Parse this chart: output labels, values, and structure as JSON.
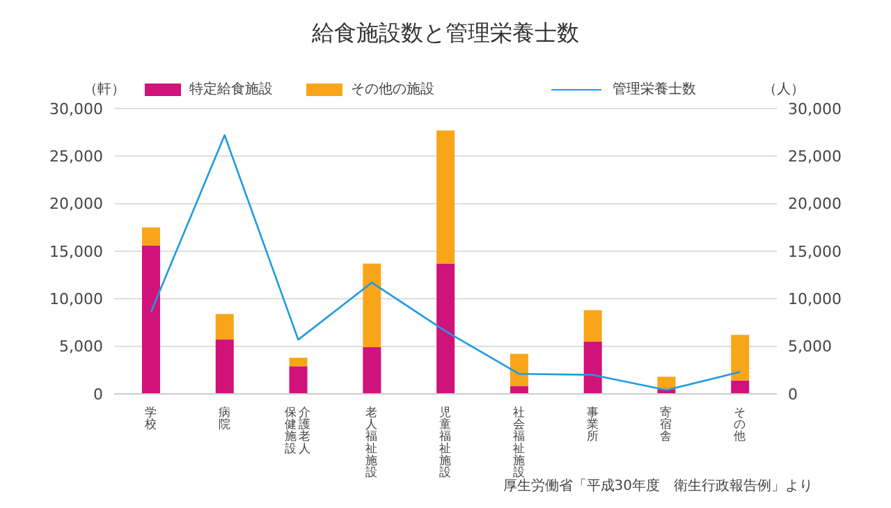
{
  "chart_data": {
    "type": "bar",
    "title": "給食施設数と管理栄養士数",
    "ylabel": "（軒）",
    "y2label": "（人）",
    "categories": [
      "学校",
      "病院",
      "介護老人保健施設",
      "老人福祉施設",
      "児童福祉施設",
      "社会福祉施設",
      "事業所",
      "寄宿舎",
      "その他"
    ],
    "series": [
      {
        "name": "特定給食施設",
        "color": "#d0127a",
        "values": [
          15600,
          5700,
          2900,
          4900,
          13700,
          800,
          5500,
          500,
          1400
        ]
      },
      {
        "name": "その他の施設",
        "color": "#f9a51a",
        "values": [
          1900,
          2700,
          900,
          8800,
          14000,
          3400,
          3300,
          1300,
          4800
        ]
      },
      {
        "name": "管理栄養士数",
        "type": "line",
        "axis": "y2",
        "color": "#1e9be0",
        "values": [
          8600,
          27200,
          5700,
          11700,
          6600,
          2100,
          2000,
          400,
          2300
        ]
      }
    ],
    "stacked": true,
    "ylim": [
      0,
      30000
    ],
    "yticks": [
      {
        "value": 0,
        "label": "0"
      },
      {
        "value": 5000,
        "label": "5,000"
      },
      {
        "value": 10000,
        "label": "10,000"
      },
      {
        "value": 15000,
        "label": "15,000"
      },
      {
        "value": 20000,
        "label": "20,000"
      },
      {
        "value": 25000,
        "label": "25,000"
      },
      {
        "value": 30000,
        "label": "30,000"
      }
    ],
    "y2lim": [
      0,
      30000
    ],
    "y2ticks": [
      {
        "value": 0,
        "label": "0"
      },
      {
        "value": 5000,
        "label": "5,000"
      },
      {
        "value": 10000,
        "label": "10,000"
      },
      {
        "value": 15000,
        "label": "15,000"
      },
      {
        "value": 20000,
        "label": "20,000"
      },
      {
        "value": 25000,
        "label": "25,000"
      },
      {
        "value": 30000,
        "label": "30,000"
      }
    ],
    "grid": "y",
    "legend": "top",
    "marker": "none",
    "annotations": [
      "厚生労働省「平成30年度　衛生行政報告例」より"
    ]
  }
}
